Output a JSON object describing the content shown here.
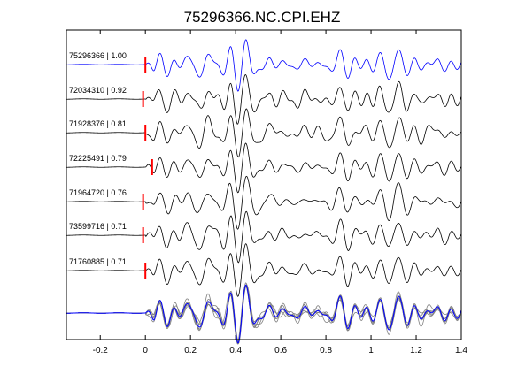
{
  "chart_data": {
    "type": "line",
    "title": "75296366.NC.CPI.EHZ",
    "xlabel": "",
    "ylabel": "",
    "xlim": [
      -0.35,
      1.4
    ],
    "xticks": [
      -0.2,
      0,
      0.2,
      0.4,
      0.6,
      0.8,
      1,
      1.2,
      1.4
    ],
    "xtick_labels": [
      "-0.2",
      "0",
      "0.2",
      "0.4",
      "0.6",
      "0.8",
      "1",
      "1.2",
      "1.4"
    ],
    "grid": false,
    "colors": {
      "reference": "#0000ff",
      "trace": "#000000",
      "pick": "#ff0000",
      "stack": "#808080"
    },
    "traces": [
      {
        "label": "75296366 | 1.00",
        "event_id": "75296366",
        "cc": 1.0,
        "pick_time": 0.0,
        "color": "#0000ff",
        "reference": true
      },
      {
        "label": "72034310 | 0.92",
        "event_id": "72034310",
        "cc": 0.92,
        "pick_time": -0.01,
        "color": "#000000"
      },
      {
        "label": "71928376 | 0.81",
        "event_id": "71928376",
        "cc": 0.81,
        "pick_time": 0.0,
        "color": "#000000"
      },
      {
        "label": "72225491 | 0.79",
        "event_id": "72225491",
        "cc": 0.79,
        "pick_time": 0.03,
        "color": "#000000"
      },
      {
        "label": "71964720 | 0.76",
        "event_id": "71964720",
        "cc": 0.76,
        "pick_time": -0.01,
        "color": "#000000"
      },
      {
        "label": "73599716 | 0.71",
        "event_id": "73599716",
        "cc": 0.71,
        "pick_time": -0.01,
        "color": "#000000"
      },
      {
        "label": "71760885 | 0.71",
        "event_id": "71760885",
        "cc": 0.71,
        "pick_time": 0.0,
        "color": "#000000"
      }
    ],
    "overlay": {
      "description_visible": false
    }
  }
}
